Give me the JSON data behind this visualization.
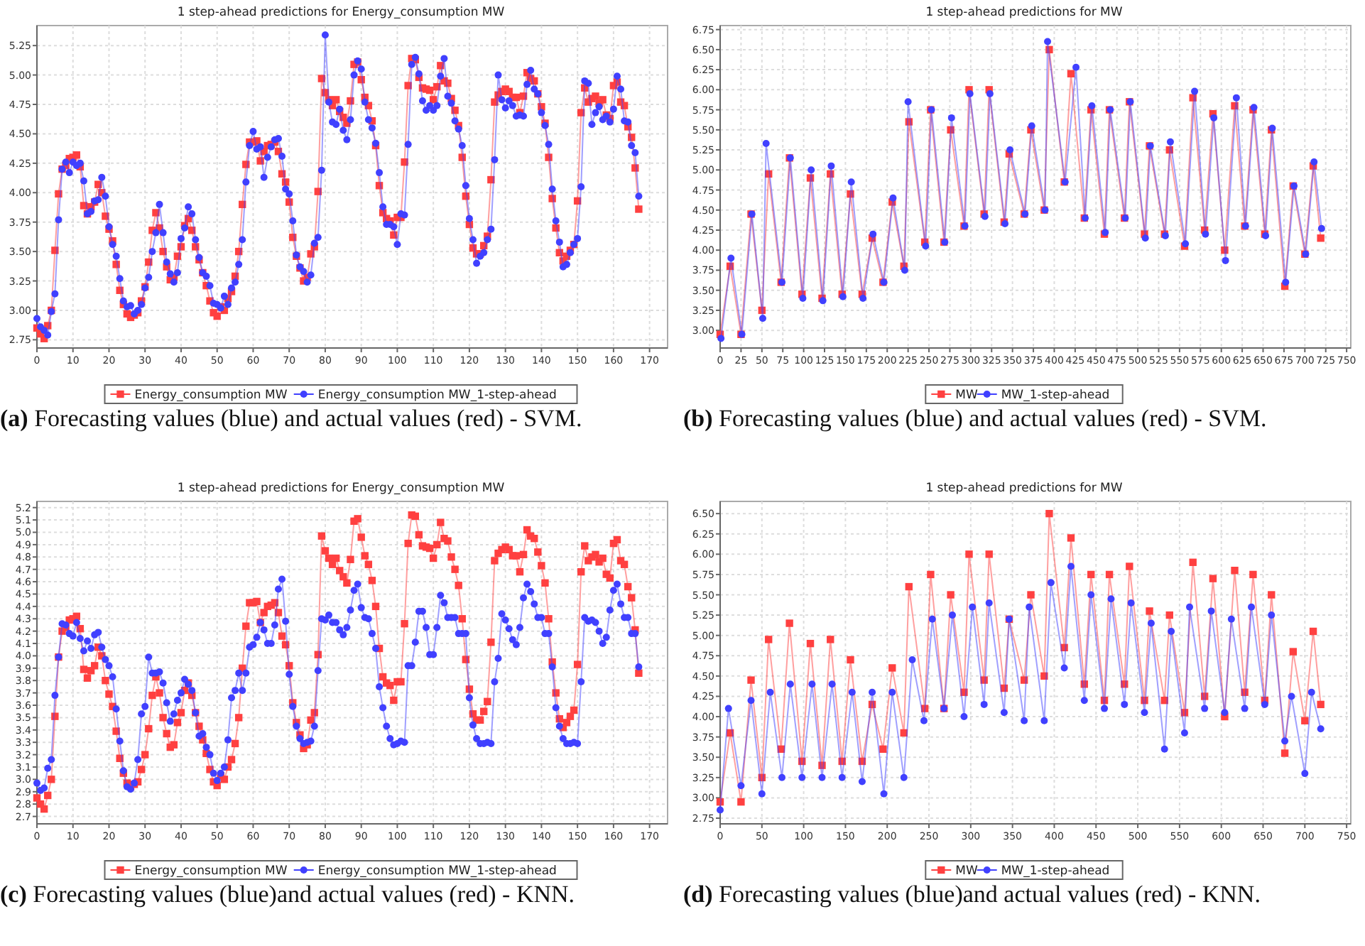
{
  "chart_data": [
    {
      "type": "line",
      "title": "1 step-ahead predictions for Energy_consumption MW",
      "xlim": [
        0,
        175
      ],
      "xticks": [
        0,
        10,
        20,
        30,
        40,
        50,
        60,
        70,
        80,
        90,
        100,
        110,
        120,
        130,
        140,
        150,
        160,
        170
      ],
      "ylim": [
        2.68,
        5.42
      ],
      "yticks": [
        2.75,
        {
          "value": 3,
          "label": "3.00"
        },
        3.25,
        {
          "value": 3.5,
          "label": "3.50"
        },
        3.75,
        {
          "value": 4,
          "label": "4.00"
        },
        4.25,
        {
          "value": 4.5,
          "label": "4.50"
        },
        4.75,
        {
          "value": 5,
          "label": "5.00"
        },
        5.25
      ],
      "grid": true,
      "legend": "bottom",
      "line_style": "solid",
      "annotations": [
        "(a) Forecasting values (blue) and actual values (red) - SVM."
      ],
      "x": [
        0,
        1,
        2,
        3,
        4,
        5,
        6,
        7,
        8,
        9,
        10,
        11,
        12,
        13,
        14,
        15,
        16,
        17,
        18,
        19,
        20,
        21,
        22,
        23,
        24,
        25,
        26,
        27,
        28,
        29,
        30,
        31,
        32,
        33,
        34,
        35,
        36,
        37,
        38,
        39,
        40,
        41,
        42,
        43,
        44,
        45,
        46,
        47,
        48,
        49,
        50,
        51,
        52,
        53,
        54,
        55,
        56,
        57,
        58,
        59,
        60,
        61,
        62,
        63,
        64,
        65,
        66,
        67,
        68,
        69,
        70,
        71,
        72,
        73,
        74,
        75,
        76,
        77,
        78,
        79,
        80,
        81,
        82,
        83,
        84,
        85,
        86,
        87,
        88,
        89,
        90,
        91,
        92,
        93,
        94,
        95,
        96,
        97,
        98,
        99,
        100,
        101,
        102,
        103,
        104,
        105,
        106,
        107,
        108,
        109,
        110,
        111,
        112,
        113,
        114,
        115,
        116,
        117,
        118,
        119,
        120,
        121,
        122,
        123,
        124,
        125,
        126,
        127,
        128,
        129,
        130,
        131,
        132,
        133,
        134,
        135,
        136,
        137,
        138,
        139,
        140,
        141,
        142,
        143,
        144,
        145,
        146,
        147,
        148,
        149,
        150,
        151,
        152,
        153,
        154,
        155,
        156,
        157,
        158,
        159,
        160,
        161,
        162,
        163,
        164,
        165,
        166,
        167
      ],
      "series": [
        {
          "name": "Energy_consumption MW",
          "color": "#ff4040",
          "marker": "square",
          "values": [
            2.85,
            2.8,
            2.76,
            2.87,
            3.0,
            3.51,
            3.99,
            4.2,
            4.23,
            4.29,
            4.3,
            4.32,
            4.22,
            3.89,
            3.82,
            3.88,
            3.92,
            4.07,
            4.0,
            3.8,
            3.69,
            3.59,
            3.39,
            3.17,
            3.05,
            2.97,
            2.94,
            2.96,
            2.98,
            3.08,
            3.2,
            3.41,
            3.68,
            3.83,
            3.7,
            3.5,
            3.37,
            3.26,
            3.28,
            3.46,
            3.54,
            3.72,
            3.78,
            3.68,
            3.54,
            3.43,
            3.32,
            3.21,
            3.08,
            2.98,
            2.95,
            3.03,
            3.0,
            3.1,
            3.16,
            3.29,
            3.5,
            3.9,
            4.24,
            4.43,
            4.43,
            4.44,
            4.27,
            4.35,
            4.4,
            4.41,
            4.43,
            4.35,
            4.16,
            4.09,
            3.92,
            3.62,
            3.46,
            3.36,
            3.25,
            3.28,
            3.48,
            3.54,
            4.01,
            4.97,
            4.85,
            4.79,
            4.74,
            4.79,
            4.69,
            4.64,
            4.59,
            4.78,
            5.09,
            5.11,
            4.96,
            4.81,
            4.74,
            4.61,
            4.4,
            4.06,
            3.83,
            3.78,
            3.76,
            3.64,
            3.79,
            3.79,
            4.26,
            4.91,
            5.14,
            5.13,
            4.98,
            4.89,
            4.88,
            4.87,
            4.79,
            4.9,
            5.08,
            4.95,
            4.93,
            4.8,
            4.7,
            4.57,
            4.3,
            3.97,
            3.73,
            3.53,
            3.48,
            3.48,
            3.55,
            3.63,
            4.11,
            4.77,
            4.83,
            4.86,
            4.88,
            4.86,
            4.81,
            4.81,
            4.68,
            4.82,
            5.02,
            4.97,
            4.95,
            4.84,
            4.73,
            4.59,
            4.3,
            3.95,
            3.7,
            3.49,
            3.42,
            3.46,
            3.51,
            3.56,
            3.93,
            4.68,
            4.89,
            4.77,
            4.8,
            4.82,
            4.76,
            4.79,
            4.66,
            4.63,
            4.91,
            4.94,
            4.77,
            4.74,
            4.56,
            4.47,
            4.21,
            3.86
          ]
        },
        {
          "name": "Energy_consumption MW_1-step-ahead",
          "color": "#4040ff",
          "marker": "circle",
          "values": [
            2.93,
            2.86,
            2.83,
            2.79,
            2.99,
            3.14,
            3.77,
            4.2,
            4.26,
            4.17,
            4.26,
            4.23,
            4.25,
            4.1,
            3.82,
            3.84,
            3.93,
            3.94,
            4.13,
            3.97,
            3.71,
            3.56,
            3.46,
            3.27,
            3.08,
            3.03,
            3.04,
            2.97,
            3.0,
            3.05,
            3.19,
            3.28,
            3.5,
            3.66,
            3.9,
            3.66,
            3.41,
            3.31,
            3.24,
            3.32,
            3.61,
            3.7,
            3.88,
            3.82,
            3.6,
            3.45,
            3.32,
            3.29,
            3.21,
            3.06,
            3.05,
            3.02,
            3.12,
            3.05,
            3.19,
            3.24,
            3.39,
            3.6,
            4.09,
            4.4,
            4.52,
            4.37,
            4.39,
            4.13,
            4.3,
            4.39,
            4.45,
            4.46,
            4.31,
            4.03,
            3.99,
            3.76,
            3.47,
            3.37,
            3.33,
            3.24,
            3.3,
            3.57,
            3.62,
            4.19,
            5.34,
            4.77,
            4.6,
            4.58,
            4.71,
            4.53,
            4.45,
            4.62,
            5.0,
            5.12,
            5.05,
            4.77,
            4.62,
            4.55,
            4.42,
            4.17,
            3.88,
            3.73,
            3.73,
            3.71,
            3.56,
            3.82,
            3.81,
            4.41,
            5.09,
            5.15,
            5.01,
            4.78,
            4.7,
            4.74,
            4.7,
            4.74,
            4.99,
            5.14,
            4.82,
            4.76,
            4.61,
            4.54,
            4.4,
            4.06,
            3.78,
            3.6,
            3.4,
            3.46,
            3.49,
            3.6,
            3.69,
            4.28,
            5.0,
            4.79,
            4.72,
            4.78,
            4.74,
            4.65,
            4.66,
            4.65,
            4.92,
            5.04,
            4.88,
            4.84,
            4.68,
            4.57,
            4.41,
            4.03,
            3.76,
            3.58,
            3.37,
            3.39,
            3.49,
            3.56,
            3.61,
            4.05,
            4.95,
            4.93,
            4.58,
            4.68,
            4.73,
            4.62,
            4.65,
            4.6,
            4.71,
            4.99,
            4.88,
            4.61,
            4.6,
            4.4,
            4.34,
            3.97
          ]
        }
      ]
    },
    {
      "type": "line",
      "title": "1 step-ahead predictions for MW",
      "xlim": [
        0,
        755
      ],
      "xticks": [
        0,
        25,
        50,
        75,
        100,
        125,
        150,
        175,
        200,
        225,
        250,
        275,
        300,
        325,
        350,
        375,
        400,
        425,
        450,
        475,
        500,
        525,
        550,
        575,
        600,
        625,
        650,
        675,
        700,
        725,
        750
      ],
      "ylim": [
        2.78,
        6.8
      ],
      "yticks": [
        {
          "value": 3,
          "label": "3.00"
        },
        3.25,
        {
          "value": 3.5,
          "label": "3.50"
        },
        3.75,
        {
          "value": 4,
          "label": "4.00"
        },
        4.25,
        {
          "value": 4.5,
          "label": "4.50"
        },
        4.75,
        {
          "value": 5,
          "label": "5.00"
        },
        5.25,
        {
          "value": 5.5,
          "label": "5.50"
        },
        5.75,
        {
          "value": 6,
          "label": "6.00"
        },
        6.25,
        {
          "value": 6.5,
          "label": "6.50"
        },
        6.75
      ],
      "grid": true,
      "legend": "bottom",
      "line_style": "solid",
      "annotations": [
        "(b) Forecasting values (blue) and actual values (red) - SVM."
      ],
      "series": [
        {
          "name": "MW",
          "color": "#ff4040",
          "marker": "square",
          "x": [
            0,
            12,
            25,
            37,
            50,
            58,
            73,
            83,
            98,
            108,
            122,
            132,
            146,
            156,
            170,
            182,
            195,
            206,
            220,
            226,
            245,
            252,
            268,
            276,
            292,
            298,
            316,
            322,
            340,
            346,
            364,
            372,
            388,
            394,
            412,
            420,
            436,
            444,
            460,
            466,
            484,
            490,
            508,
            514,
            532,
            538,
            556,
            566,
            580,
            590,
            604,
            616,
            628,
            638,
            652,
            660,
            676,
            686,
            700,
            710,
            719
          ],
          "values": [
            2.95,
            3.8,
            2.95,
            4.45,
            3.25,
            4.95,
            3.6,
            5.15,
            3.45,
            4.9,
            3.4,
            4.95,
            3.45,
            4.7,
            3.45,
            4.15,
            3.6,
            4.6,
            3.8,
            5.6,
            4.1,
            5.75,
            4.1,
            5.5,
            4.3,
            6.0,
            4.45,
            6.0,
            4.35,
            5.2,
            4.45,
            5.5,
            4.5,
            6.5,
            4.85,
            6.2,
            4.4,
            5.75,
            4.2,
            5.75,
            4.4,
            5.85,
            4.2,
            5.3,
            4.2,
            5.25,
            4.05,
            5.9,
            4.25,
            5.7,
            4.0,
            5.8,
            4.3,
            5.75,
            4.2,
            5.5,
            3.55,
            4.8,
            3.95,
            5.05,
            4.15
          ]
        },
        {
          "name": "MW_1-step-ahead",
          "color": "#4040ff",
          "marker": "circle",
          "x": [
            1,
            13,
            26,
            38,
            51,
            55,
            74,
            84,
            99,
            109,
            123,
            133,
            147,
            157,
            171,
            183,
            196,
            207,
            221,
            225,
            246,
            253,
            269,
            277,
            293,
            299,
            317,
            323,
            341,
            347,
            365,
            373,
            389,
            392,
            413,
            426,
            437,
            445,
            461,
            467,
            485,
            491,
            509,
            515,
            533,
            539,
            557,
            568,
            581,
            591,
            605,
            618,
            629,
            639,
            653,
            661,
            677,
            687,
            701,
            711,
            720
          ],
          "values": [
            2.9,
            3.9,
            2.95,
            4.45,
            3.15,
            5.33,
            3.6,
            5.15,
            3.4,
            5.0,
            3.37,
            5.05,
            3.42,
            4.85,
            3.4,
            4.2,
            3.6,
            4.65,
            3.75,
            5.85,
            4.05,
            5.75,
            4.1,
            5.65,
            4.3,
            5.95,
            4.42,
            5.95,
            4.33,
            5.25,
            4.45,
            5.55,
            4.5,
            6.6,
            4.85,
            6.28,
            4.4,
            5.8,
            4.22,
            5.75,
            4.4,
            5.85,
            4.15,
            5.3,
            4.18,
            5.35,
            4.08,
            5.98,
            4.2,
            5.65,
            3.87,
            5.9,
            4.3,
            5.78,
            4.18,
            5.52,
            3.6,
            4.8,
            3.95,
            5.1,
            4.27
          ]
        }
      ]
    },
    {
      "type": "line",
      "title": "1 step-ahead predictions for Energy_consumption MW",
      "xlim": [
        0,
        175
      ],
      "xticks": [
        0,
        10,
        20,
        30,
        40,
        50,
        60,
        70,
        80,
        90,
        100,
        110,
        120,
        130,
        140,
        150,
        160,
        170
      ],
      "ylim": [
        2.64,
        5.25
      ],
      "yticks": [
        2.7,
        2.8,
        2.9,
        {
          "value": 3,
          "label": "3.0"
        },
        3.1,
        3.2,
        3.3,
        3.4,
        3.5,
        3.6,
        3.7,
        3.8,
        3.9,
        {
          "value": 4,
          "label": "4.0"
        },
        4.1,
        4.2,
        4.3,
        4.4,
        4.5,
        4.6,
        4.7,
        4.8,
        4.9,
        {
          "value": 5,
          "label": "5.0"
        },
        5.1,
        5.2
      ],
      "grid": true,
      "legend": "bottom",
      "line_style": "solid",
      "annotations": [
        "(c) Forecasting values (blue)and actual values (red) - KNN."
      ],
      "x": [
        0,
        1,
        2,
        3,
        4,
        5,
        6,
        7,
        8,
        9,
        10,
        11,
        12,
        13,
        14,
        15,
        16,
        17,
        18,
        19,
        20,
        21,
        22,
        23,
        24,
        25,
        26,
        27,
        28,
        29,
        30,
        31,
        32,
        33,
        34,
        35,
        36,
        37,
        38,
        39,
        40,
        41,
        42,
        43,
        44,
        45,
        46,
        47,
        48,
        49,
        50,
        51,
        52,
        53,
        54,
        55,
        56,
        57,
        58,
        59,
        60,
        61,
        62,
        63,
        64,
        65,
        66,
        67,
        68,
        69,
        70,
        71,
        72,
        73,
        74,
        75,
        76,
        77,
        78,
        79,
        80,
        81,
        82,
        83,
        84,
        85,
        86,
        87,
        88,
        89,
        90,
        91,
        92,
        93,
        94,
        95,
        96,
        97,
        98,
        99,
        100,
        101,
        102,
        103,
        104,
        105,
        106,
        107,
        108,
        109,
        110,
        111,
        112,
        113,
        114,
        115,
        116,
        117,
        118,
        119,
        120,
        121,
        122,
        123,
        124,
        125,
        126,
        127,
        128,
        129,
        130,
        131,
        132,
        133,
        134,
        135,
        136,
        137,
        138,
        139,
        140,
        141,
        142,
        143,
        144,
        145,
        146,
        147,
        148,
        149,
        150,
        151,
        152,
        153,
        154,
        155,
        156,
        157,
        158,
        159,
        160,
        161,
        162,
        163,
        164,
        165,
        166,
        167
      ],
      "series": [
        {
          "name": "Energy_consumption MW",
          "color": "#ff4040",
          "marker": "square",
          "values": [
            2.85,
            2.8,
            2.76,
            2.87,
            3.0,
            3.51,
            3.99,
            4.2,
            4.23,
            4.29,
            4.3,
            4.32,
            4.22,
            3.89,
            3.82,
            3.88,
            3.92,
            4.07,
            4.0,
            3.8,
            3.69,
            3.59,
            3.39,
            3.17,
            3.05,
            2.97,
            2.94,
            2.96,
            2.98,
            3.08,
            3.2,
            3.41,
            3.68,
            3.83,
            3.7,
            3.5,
            3.37,
            3.26,
            3.28,
            3.46,
            3.54,
            3.72,
            3.78,
            3.68,
            3.54,
            3.43,
            3.32,
            3.21,
            3.08,
            2.98,
            2.95,
            3.03,
            3.0,
            3.1,
            3.16,
            3.29,
            3.5,
            3.9,
            4.24,
            4.43,
            4.43,
            4.44,
            4.27,
            4.35,
            4.4,
            4.41,
            4.43,
            4.35,
            4.16,
            4.09,
            3.92,
            3.62,
            3.46,
            3.36,
            3.25,
            3.28,
            3.48,
            3.54,
            4.01,
            4.97,
            4.85,
            4.79,
            4.74,
            4.79,
            4.69,
            4.64,
            4.59,
            4.78,
            5.09,
            5.11,
            4.96,
            4.81,
            4.74,
            4.61,
            4.4,
            4.06,
            3.83,
            3.78,
            3.76,
            3.64,
            3.79,
            3.79,
            4.26,
            4.91,
            5.14,
            5.13,
            4.98,
            4.89,
            4.88,
            4.87,
            4.79,
            4.9,
            5.08,
            4.95,
            4.93,
            4.8,
            4.7,
            4.57,
            4.3,
            3.97,
            3.73,
            3.53,
            3.48,
            3.48,
            3.55,
            3.63,
            4.11,
            4.77,
            4.83,
            4.86,
            4.88,
            4.86,
            4.81,
            4.81,
            4.68,
            4.82,
            5.02,
            4.97,
            4.95,
            4.84,
            4.73,
            4.59,
            4.3,
            3.95,
            3.7,
            3.49,
            3.42,
            3.46,
            3.51,
            3.56,
            3.93,
            4.68,
            4.89,
            4.77,
            4.8,
            4.82,
            4.76,
            4.79,
            4.66,
            4.63,
            4.91,
            4.94,
            4.77,
            4.74,
            4.56,
            4.47,
            4.21,
            3.86
          ]
        },
        {
          "name": "Energy_consumption MW_1-step-ahead",
          "color": "#4040ff",
          "marker": "circle",
          "values": [
            2.97,
            2.91,
            2.93,
            3.09,
            3.16,
            3.68,
            3.99,
            4.26,
            4.25,
            4.18,
            4.16,
            4.27,
            4.14,
            4.04,
            4.12,
            4.06,
            4.17,
            4.19,
            4.07,
            3.97,
            3.92,
            3.83,
            3.57,
            3.31,
            3.07,
            2.94,
            2.92,
            2.97,
            3.16,
            3.53,
            3.59,
            3.99,
            3.86,
            3.86,
            3.87,
            3.78,
            3.62,
            3.47,
            3.53,
            3.64,
            3.7,
            3.81,
            3.77,
            3.72,
            3.54,
            3.35,
            3.37,
            3.26,
            3.2,
            3.05,
            2.99,
            3.05,
            3.1,
            3.32,
            3.66,
            3.72,
            3.86,
            3.72,
            3.86,
            4.07,
            4.09,
            4.15,
            4.27,
            4.21,
            4.1,
            4.1,
            4.25,
            4.54,
            4.62,
            4.28,
            3.85,
            3.59,
            3.43,
            3.33,
            3.29,
            3.3,
            3.31,
            3.43,
            3.88,
            4.3,
            4.29,
            4.33,
            4.27,
            4.27,
            4.21,
            4.17,
            4.23,
            4.37,
            4.53,
            4.58,
            4.39,
            4.31,
            4.3,
            4.18,
            4.06,
            3.75,
            3.58,
            3.43,
            3.33,
            3.28,
            3.29,
            3.31,
            3.3,
            3.92,
            3.92,
            4.11,
            4.36,
            4.36,
            4.23,
            4.01,
            4.01,
            4.23,
            4.49,
            4.43,
            4.31,
            4.31,
            4.31,
            4.18,
            4.18,
            4.18,
            3.66,
            3.44,
            3.33,
            3.29,
            3.29,
            3.3,
            3.29,
            3.79,
            3.98,
            4.34,
            4.29,
            4.22,
            4.13,
            4.09,
            4.23,
            4.47,
            4.58,
            4.52,
            4.42,
            4.31,
            4.31,
            4.18,
            4.18,
            3.91,
            3.58,
            3.43,
            3.33,
            3.29,
            3.29,
            3.3,
            3.29,
            3.79,
            4.31,
            4.28,
            4.29,
            4.27,
            4.2,
            4.1,
            4.15,
            4.37,
            4.53,
            4.58,
            4.42,
            4.31,
            4.31,
            4.18,
            4.18,
            3.91
          ]
        }
      ]
    },
    {
      "type": "line",
      "title": "1 step-ahead predictions for MW",
      "xlim": [
        0,
        755
      ],
      "xticks": [
        0,
        50,
        100,
        150,
        200,
        250,
        300,
        350,
        400,
        450,
        500,
        550,
        600,
        650,
        700,
        750
      ],
      "ylim": [
        2.68,
        6.65
      ],
      "yticks": [
        2.75,
        {
          "value": 3,
          "label": "3.00"
        },
        3.25,
        {
          "value": 3.5,
          "label": "3.50"
        },
        3.75,
        {
          "value": 4,
          "label": "4.00"
        },
        4.25,
        {
          "value": 4.5,
          "label": "4.50"
        },
        4.75,
        {
          "value": 5,
          "label": "5.00"
        },
        5.25,
        {
          "value": 5.5,
          "label": "5.50"
        },
        5.75,
        {
          "value": 6,
          "label": "6.00"
        },
        6.25,
        {
          "value": 6.5,
          "label": "6.50"
        }
      ],
      "grid": true,
      "legend": "bottom",
      "line_style": "solid",
      "annotations": [
        "(d) Forecasting values (blue)and actual values (red) - KNN."
      ],
      "series": [
        {
          "name": "MW",
          "color": "#ff4040",
          "marker": "square",
          "x": [
            0,
            12,
            25,
            37,
            50,
            58,
            73,
            83,
            98,
            108,
            122,
            132,
            146,
            156,
            170,
            182,
            195,
            206,
            220,
            226,
            245,
            252,
            268,
            276,
            292,
            298,
            316,
            322,
            340,
            346,
            364,
            372,
            388,
            394,
            412,
            420,
            436,
            444,
            460,
            466,
            484,
            490,
            508,
            514,
            532,
            538,
            556,
            566,
            580,
            590,
            604,
            616,
            628,
            638,
            652,
            660,
            676,
            686,
            700,
            710,
            719
          ],
          "values": [
            2.95,
            3.8,
            2.95,
            4.45,
            3.25,
            4.95,
            3.6,
            5.15,
            3.45,
            4.9,
            3.4,
            4.95,
            3.45,
            4.7,
            3.45,
            4.15,
            3.6,
            4.6,
            3.8,
            5.6,
            4.1,
            5.75,
            4.1,
            5.5,
            4.3,
            6.0,
            4.45,
            6.0,
            4.35,
            5.2,
            4.45,
            5.5,
            4.5,
            6.5,
            4.85,
            6.2,
            4.4,
            5.75,
            4.2,
            5.75,
            4.4,
            5.85,
            4.2,
            5.3,
            4.2,
            5.25,
            4.05,
            5.9,
            4.25,
            5.7,
            4.0,
            5.8,
            4.3,
            5.75,
            4.2,
            5.5,
            3.55,
            4.8,
            3.95,
            5.05,
            4.15
          ]
        },
        {
          "name": "MW_1-step-ahead",
          "color": "#4040ff",
          "marker": "circle",
          "x": [
            0,
            10,
            25,
            37,
            50,
            60,
            74,
            84,
            98,
            110,
            122,
            134,
            146,
            158,
            170,
            182,
            196,
            206,
            220,
            230,
            244,
            254,
            268,
            278,
            292,
            302,
            316,
            322,
            340,
            346,
            364,
            370,
            388,
            396,
            412,
            420,
            436,
            444,
            460,
            468,
            484,
            492,
            508,
            516,
            532,
            540,
            556,
            562,
            580,
            588,
            604,
            612,
            628,
            636,
            652,
            660,
            676,
            684,
            700,
            708,
            719
          ],
          "values": [
            2.85,
            4.1,
            3.15,
            4.2,
            3.05,
            4.3,
            3.25,
            4.4,
            3.25,
            4.4,
            3.25,
            4.4,
            3.25,
            4.3,
            3.2,
            4.3,
            3.05,
            4.3,
            3.25,
            4.7,
            3.95,
            5.2,
            4.1,
            5.25,
            4.0,
            5.35,
            4.15,
            5.4,
            4.05,
            5.2,
            3.95,
            5.35,
            3.95,
            5.65,
            4.6,
            5.85,
            4.2,
            5.5,
            4.1,
            5.45,
            4.15,
            5.4,
            4.05,
            5.15,
            3.6,
            5.05,
            3.8,
            5.35,
            4.1,
            5.3,
            4.05,
            5.2,
            4.1,
            5.35,
            4.15,
            5.25,
            3.7,
            4.25,
            3.3,
            4.3,
            3.85
          ]
        }
      ]
    }
  ]
}
